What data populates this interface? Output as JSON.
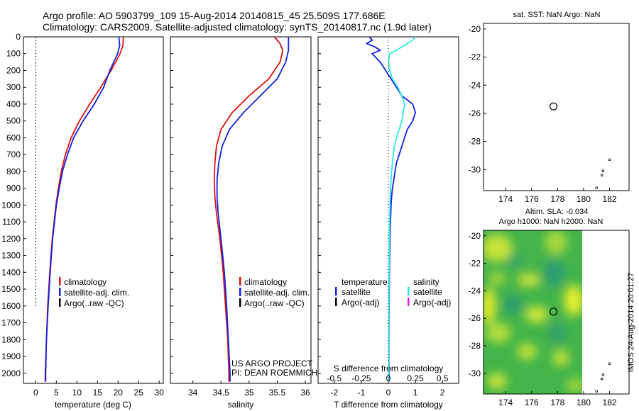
{
  "header": {
    "line1": "Argo profile: AO 5903799_109 15-Aug-2014 20140815_45 25.509S 177.686E",
    "line2": "Climatology: CARS2009. Satellite-adjusted climatology: synTS_20140817.nc (1.9d later)"
  },
  "side_stamp": "IMOS 24-Aug-2014 20:01:27",
  "colors": {
    "clim": "#e01010",
    "sat": "#1020e0",
    "argo": "#000000",
    "sat_s": "#30e8e8",
    "argo_s": "#e020e0"
  },
  "chart_data": [
    {
      "type": "line",
      "xlabel": "temperature (deg C)",
      "ylabel": "",
      "xlim": [
        -3,
        31
      ],
      "ylim": [
        2060,
        0
      ],
      "xticks": [
        0,
        5,
        10,
        15,
        20,
        25,
        30
      ],
      "yticks": [
        0,
        100,
        200,
        300,
        400,
        500,
        600,
        700,
        800,
        900,
        1000,
        1100,
        1200,
        1300,
        1400,
        1500,
        1600,
        1700,
        1800,
        1900,
        2000
      ],
      "ref_line": {
        "x": 0,
        "ymax": 1600
      },
      "legend": [
        "climatology",
        "satellite-adj. clim.",
        "Argo(..raw -QC)"
      ],
      "series": [
        {
          "name": "climatology",
          "color_key": "clim",
          "depth": [
            0,
            50,
            100,
            200,
            300,
            400,
            500,
            600,
            700,
            800,
            900,
            1000,
            1200,
            1400,
            1600,
            1800,
            2000,
            2050
          ],
          "values": [
            21.3,
            21.2,
            20.5,
            18.3,
            15.8,
            13.1,
            10.6,
            8.6,
            7.2,
            6.2,
            5.5,
            4.9,
            4.0,
            3.4,
            2.9,
            2.6,
            2.3,
            2.3
          ]
        },
        {
          "name": "satellite-adj. clim.",
          "color_key": "sat",
          "depth": [
            0,
            50,
            100,
            200,
            300,
            400,
            500,
            600,
            700,
            800,
            900,
            1000,
            1200,
            1400,
            1600,
            1800,
            2000,
            2050
          ],
          "values": [
            20.2,
            20.4,
            19.9,
            18.0,
            16.5,
            14.2,
            11.5,
            9.2,
            7.7,
            6.5,
            5.7,
            5.0,
            4.1,
            3.5,
            3.0,
            2.6,
            2.4,
            2.4
          ]
        }
      ]
    },
    {
      "type": "line",
      "xlabel": "salinity",
      "xlim": [
        33.6,
        36.1
      ],
      "ylim": [
        2060,
        0
      ],
      "xticks": [
        34,
        34.5,
        35,
        35.5,
        36
      ],
      "xticklabels": [
        "34",
        "34.5",
        "35",
        "35.5",
        "36"
      ],
      "legend": [
        "climatology",
        "satellite-adj. clim.",
        "Argo(..raw -QC)"
      ],
      "annotation": [
        "US ARGO PROJECT",
        "PI: DEAN ROEMMICH"
      ],
      "series": [
        {
          "name": "climatology",
          "color_key": "clim",
          "depth": [
            0,
            40,
            80,
            150,
            250,
            350,
            450,
            550,
            650,
            750,
            850,
            950,
            1050,
            1200,
            1400,
            1600,
            1800,
            2000,
            2050
          ],
          "values": [
            35.45,
            35.55,
            35.6,
            35.55,
            35.35,
            35.0,
            34.7,
            34.5,
            34.42,
            34.39,
            34.38,
            34.39,
            34.42,
            34.48,
            34.54,
            34.58,
            34.62,
            34.64,
            34.64
          ]
        },
        {
          "name": "satellite-adj. clim.",
          "color_key": "sat",
          "depth": [
            0,
            40,
            80,
            150,
            250,
            350,
            450,
            550,
            650,
            750,
            850,
            950,
            1050,
            1200,
            1400,
            1600,
            1800,
            2000,
            2050
          ],
          "values": [
            35.7,
            35.7,
            35.7,
            35.65,
            35.5,
            35.2,
            34.9,
            34.65,
            34.52,
            34.46,
            34.43,
            34.43,
            34.45,
            34.5,
            34.56,
            34.6,
            34.63,
            34.66,
            34.66
          ]
        }
      ]
    },
    {
      "type": "line",
      "xlabel": "T difference from climatology",
      "top_label": "S difference from climatology",
      "xlim": [
        -2.6,
        2.6
      ],
      "ylim": [
        2060,
        0
      ],
      "xticks": [
        -2,
        -1,
        0,
        1,
        2
      ],
      "s_ticks": [
        -0.5,
        -0.25,
        0,
        0.25,
        0.5
      ],
      "s_ticklabels": [
        "-0.5",
        "-0.25",
        "0",
        "0.25",
        "0.5"
      ],
      "legend_left_title": "temperature",
      "legend_right_title": "salinity",
      "legend_left": [
        "satellite",
        "Argo(-adj)"
      ],
      "legend_right": [
        "satellite",
        "Argo(-adj)"
      ],
      "series": [
        {
          "name": "satellite",
          "color_key": "sat",
          "depth": [
            0,
            20,
            40,
            60,
            80,
            100,
            150,
            200,
            250,
            300,
            350,
            400,
            450,
            500,
            550,
            600,
            650,
            700,
            750,
            800,
            850,
            900,
            950,
            1000,
            1100,
            1200,
            1400,
            1600,
            1800,
            2000,
            2050
          ],
          "values": [
            -0.7,
            -0.6,
            -0.8,
            -0.5,
            -0.3,
            -0.6,
            -0.3,
            -0.1,
            0.1,
            0.3,
            0.5,
            0.9,
            1.0,
            0.9,
            0.7,
            0.6,
            0.5,
            0.4,
            0.3,
            0.25,
            0.2,
            0.15,
            0.12,
            0.1,
            0.08,
            0.06,
            0.04,
            0.03,
            0.02,
            0.02,
            0.02
          ]
        },
        {
          "name": "satellite",
          "color_key": "sat_s",
          "depth": [
            0,
            20,
            40,
            60,
            80,
            100,
            150,
            200,
            250,
            300,
            350,
            400,
            450,
            500,
            550,
            600,
            650,
            700,
            750,
            800,
            850,
            900,
            950,
            1000,
            1100,
            1200,
            1400,
            1600,
            1800,
            2000,
            2050
          ],
          "values": [
            1.0,
            0.9,
            0.7,
            0.5,
            0.3,
            0.05,
            0.0,
            0.05,
            0.15,
            0.35,
            0.5,
            0.6,
            0.55,
            0.5,
            0.4,
            0.3,
            0.22,
            0.18,
            0.15,
            0.12,
            0.1,
            0.08,
            0.07,
            0.06,
            0.05,
            0.04,
            0.03,
            0.02,
            0.02,
            0.01,
            0.01
          ]
        }
      ]
    },
    {
      "type": "scatter",
      "title": "sat. SST: NaN Argo: NaN",
      "xlim": [
        172.3,
        183.5
      ],
      "ylim": [
        -31.5,
        -19.6
      ],
      "xticks": [
        174,
        176,
        178,
        180,
        182
      ],
      "yticks": [
        -20,
        -22,
        -24,
        -26,
        -28,
        -30
      ],
      "float_position": {
        "x": 177.686,
        "y": -25.509
      },
      "islands": [
        [
          182.0,
          -29.3
        ],
        [
          181.5,
          -30.1
        ],
        [
          181.4,
          -30.4
        ],
        [
          181.0,
          -31.3
        ]
      ]
    },
    {
      "type": "heatmap",
      "title_line1": "Altim. SLA: -0.034",
      "title_line2": "Argo h1000: NaN h2000: NaN",
      "xlim": [
        172.3,
        183.5
      ],
      "ylim": [
        -31.5,
        -19.6
      ],
      "data_xlim": [
        172.3,
        180.0
      ],
      "xticks": [
        174,
        176,
        178,
        180,
        182
      ],
      "yticks": [
        -20,
        -22,
        -24,
        -26,
        -28,
        -30
      ],
      "float_position": {
        "x": 177.686,
        "y": -25.509
      },
      "islands": [
        [
          182.0,
          -29.3
        ],
        [
          181.5,
          -30.1
        ],
        [
          181.4,
          -30.4
        ],
        [
          181.0,
          -31.3
        ]
      ]
    }
  ]
}
